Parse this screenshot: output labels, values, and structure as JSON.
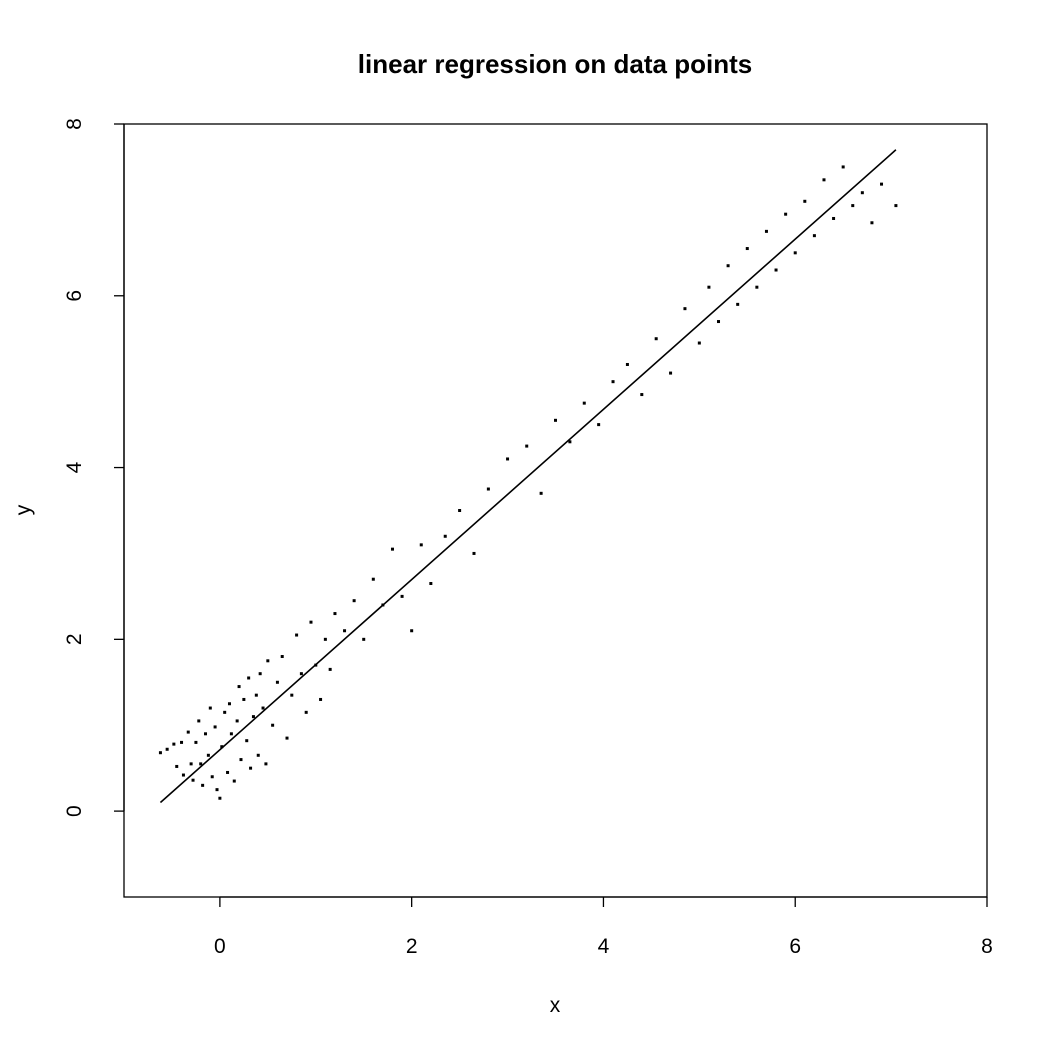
{
  "chart_data": {
    "type": "scatter",
    "title": "linear regression on data points",
    "xlabel": "x",
    "ylabel": "y",
    "xlim": [
      -1,
      8
    ],
    "ylim": [
      -1,
      8
    ],
    "x_ticks": [
      0,
      2,
      4,
      6,
      8
    ],
    "y_ticks": [
      0,
      2,
      4,
      6,
      8
    ],
    "x_tick_labels": [
      "0",
      "2",
      "4",
      "6",
      "8"
    ],
    "y_tick_labels": [
      "0",
      "2",
      "4",
      "6",
      "8"
    ],
    "grid": false,
    "colors": {
      "points": "#000000",
      "line": "#000000",
      "box": "#000000"
    },
    "series": [
      {
        "type": "scatter",
        "x": [
          -0.62,
          -0.55,
          -0.48,
          -0.45,
          -0.4,
          -0.38,
          -0.33,
          -0.3,
          -0.28,
          -0.25,
          -0.22,
          -0.2,
          -0.18,
          -0.15,
          -0.12,
          -0.1,
          -0.08,
          -0.05,
          -0.03,
          0.0,
          0.02,
          0.05,
          0.08,
          0.1,
          0.12,
          0.15,
          0.18,
          0.2,
          0.22,
          0.25,
          0.28,
          0.3,
          0.32,
          0.35,
          0.38,
          0.4,
          0.42,
          0.45,
          0.48,
          0.5,
          0.55,
          0.6,
          0.65,
          0.7,
          0.75,
          0.8,
          0.85,
          0.9,
          0.95,
          1.0,
          1.05,
          1.1,
          1.15,
          1.2,
          1.3,
          1.4,
          1.5,
          1.6,
          1.7,
          1.8,
          1.9,
          2.0,
          2.1,
          2.2,
          2.35,
          2.5,
          2.65,
          2.8,
          3.0,
          3.2,
          3.35,
          3.5,
          3.65,
          3.8,
          3.95,
          4.1,
          4.25,
          4.4,
          4.55,
          4.7,
          4.85,
          5.0,
          5.1,
          5.2,
          5.3,
          5.4,
          5.5,
          5.6,
          5.7,
          5.8,
          5.9,
          6.0,
          6.1,
          6.2,
          6.3,
          6.4,
          6.5,
          6.6,
          6.7,
          6.8,
          6.9,
          7.05
        ],
        "y": [
          0.68,
          0.72,
          0.78,
          0.52,
          0.8,
          0.42,
          0.92,
          0.55,
          0.36,
          0.8,
          1.05,
          0.55,
          0.3,
          0.9,
          0.65,
          1.2,
          0.4,
          0.98,
          0.25,
          0.15,
          0.75,
          1.15,
          0.45,
          1.25,
          0.9,
          0.35,
          1.05,
          1.45,
          0.6,
          1.3,
          0.82,
          1.55,
          0.5,
          1.1,
          1.35,
          0.65,
          1.6,
          1.2,
          0.55,
          1.75,
          1.0,
          1.5,
          1.8,
          0.85,
          1.35,
          2.05,
          1.6,
          1.15,
          2.2,
          1.7,
          1.3,
          2.0,
          1.65,
          2.3,
          2.1,
          2.45,
          2.0,
          2.7,
          2.4,
          3.05,
          2.5,
          2.1,
          3.1,
          2.65,
          3.2,
          3.5,
          3.0,
          3.75,
          4.1,
          4.25,
          3.7,
          4.55,
          4.3,
          4.75,
          4.5,
          5.0,
          5.2,
          4.85,
          5.5,
          5.1,
          5.85,
          5.45,
          6.1,
          5.7,
          6.35,
          5.9,
          6.55,
          6.1,
          6.75,
          6.3,
          6.95,
          6.5,
          7.1,
          6.7,
          7.35,
          6.9,
          7.5,
          7.05,
          7.2,
          6.85,
          7.3,
          7.05
        ]
      },
      {
        "type": "line",
        "x": [
          -0.62,
          7.05
        ],
        "y": [
          0.1,
          7.7
        ]
      }
    ]
  }
}
